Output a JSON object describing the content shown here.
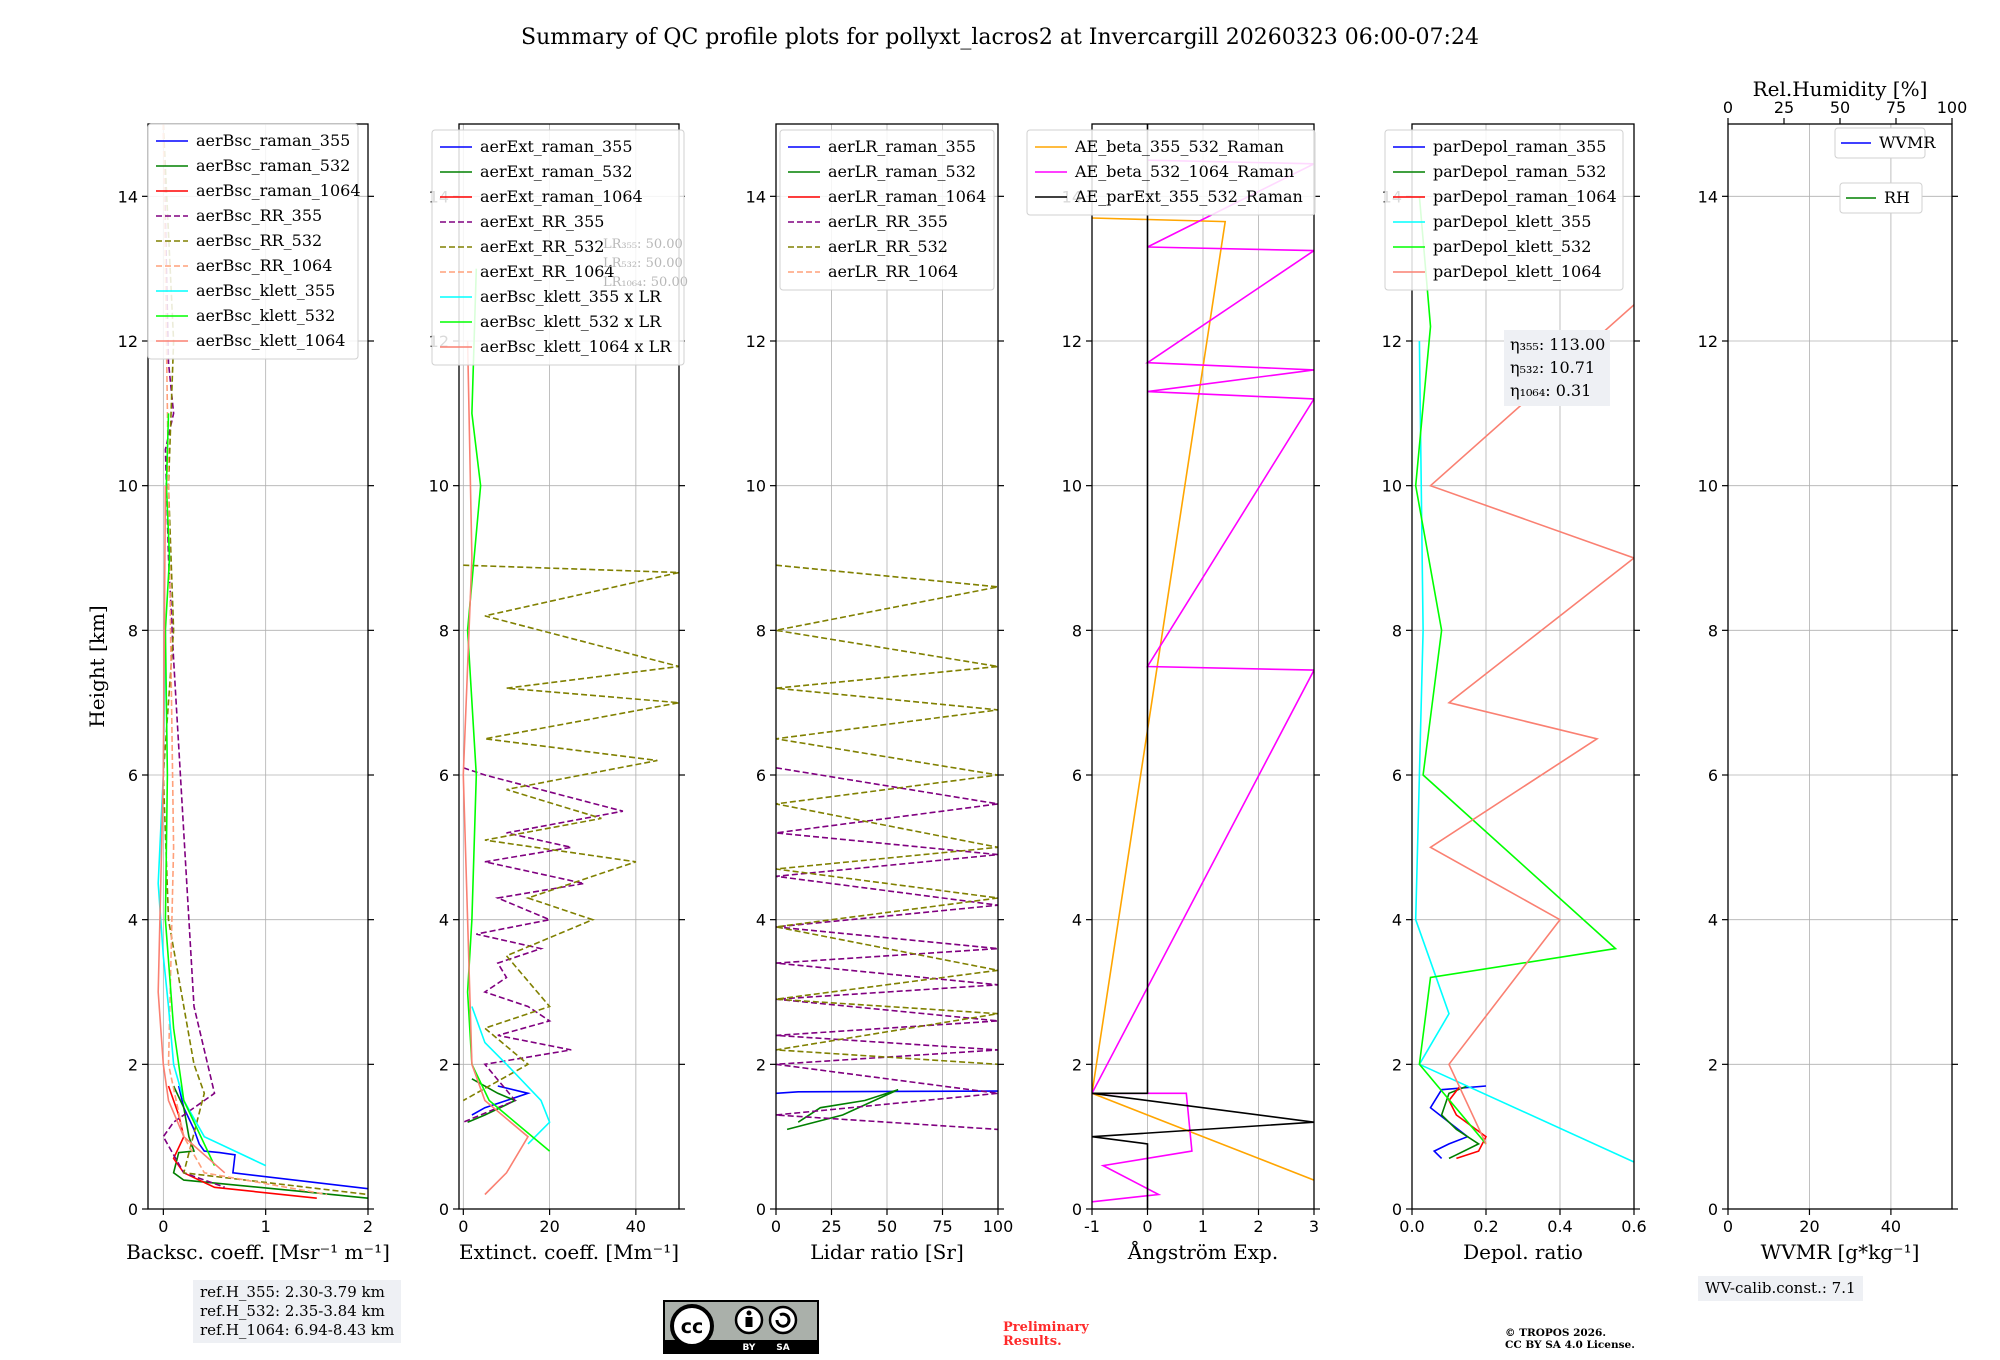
{
  "title": "Summary of QC profile plots for pollyxt_lacros2 at Invercargill 20260323 06:00-07:24",
  "colors": {
    "raman_355": "#0000ff",
    "raman_532": "#008000",
    "raman_1064": "#ff0000",
    "rr_355": "#800080",
    "rr_532": "#808000",
    "rr_1064": "#ffa07a",
    "klett_355": "#00ffff",
    "klett_532": "#00ff00",
    "klett_1064": "#fa8072",
    "ae_beta_355_532": "#ffa500",
    "ae_beta_532_1064": "#ff00ff",
    "ae_parext": "#000000",
    "wvmr": "#0000ff",
    "rh": "#008000"
  },
  "chart_data": [
    {
      "type": "line",
      "panel": "backscatter",
      "xlabel": "Backsc. coeff. [Msr⁻¹ m⁻¹]",
      "ylabel": "Height [km]",
      "xlim": [
        -0.15,
        2
      ],
      "ylim": [
        0,
        15
      ],
      "xticks": [
        0,
        1,
        2
      ],
      "yticks": [
        0,
        2,
        4,
        6,
        8,
        10,
        12,
        14
      ],
      "legend": [
        "aerBsc_raman_355",
        "aerBsc_raman_532",
        "aerBsc_raman_1064",
        "aerBsc_RR_355",
        "aerBsc_RR_532",
        "aerBsc_RR_1064",
        "aerBsc_klett_355",
        "aerBsc_klett_532",
        "aerBsc_klett_1064"
      ],
      "series": [
        {
          "name": "aerBsc_raman_355",
          "x": [
            0.15,
            0.2,
            0.3,
            0.35,
            0.4,
            0.55,
            0.7,
            0.68,
            2.0
          ],
          "y": [
            1.7,
            1.4,
            1.1,
            0.9,
            0.8,
            0.78,
            0.75,
            0.5,
            0.28
          ]
        },
        {
          "name": "aerBsc_raman_532",
          "x": [
            0.1,
            0.2,
            0.25,
            0.3,
            0.15,
            0.1,
            0.2,
            1.3,
            2.0
          ],
          "y": [
            1.7,
            1.4,
            1.0,
            0.8,
            0.78,
            0.5,
            0.4,
            0.25,
            0.15
          ]
        },
        {
          "name": "aerBsc_raman_1064",
          "x": [
            0.05,
            0.15,
            0.2,
            0.1,
            0.2,
            0.5,
            1.5
          ],
          "y": [
            1.7,
            1.3,
            1.0,
            0.7,
            0.5,
            0.3,
            0.15
          ]
        },
        {
          "name": "aerBsc_RR_355",
          "x": [
            0.0,
            0.05,
            0.1,
            0.02,
            0.05,
            0.1,
            0.3,
            0.5,
            0.1,
            0.0,
            0.2,
            0.6
          ],
          "y": [
            15,
            11.7,
            11.0,
            10.5,
            9.0,
            7.6,
            2.8,
            1.6,
            1.2,
            1.0,
            0.5,
            0.3
          ]
        },
        {
          "name": "aerBsc_RR_532",
          "x": [
            0.0,
            0.1,
            0.05,
            0.1,
            0.0,
            0.05,
            0.3,
            0.4,
            0.2,
            2.0
          ],
          "y": [
            15,
            12.0,
            10.0,
            8.0,
            6.0,
            4.0,
            2.0,
            1.6,
            0.5,
            0.2
          ]
        },
        {
          "name": "aerBsc_RR_1064",
          "x": [
            0.0,
            0.05,
            0.1,
            0.05,
            0.2,
            0.4,
            1.6
          ],
          "y": [
            15,
            10.0,
            5.0,
            2.0,
            1.0,
            0.5,
            0.2
          ]
        },
        {
          "name": "aerBsc_klett_355",
          "x": [
            0.02,
            0.0,
            -0.05,
            0.0,
            0.05,
            0.1,
            0.2,
            0.4,
            1.0
          ],
          "y": [
            8.0,
            6.0,
            4.5,
            3.5,
            2.8,
            2.0,
            1.5,
            1.0,
            0.6
          ]
        },
        {
          "name": "aerBsc_klett_532",
          "x": [
            0.05,
            0.03,
            0.06,
            0.02,
            0.04,
            0.02,
            0.1,
            0.2,
            0.5
          ],
          "y": [
            11.0,
            10.0,
            9.0,
            8.0,
            6.0,
            4.0,
            2.5,
            1.5,
            0.6
          ]
        },
        {
          "name": "aerBsc_klett_1064",
          "x": [
            0.02,
            0.0,
            -0.05,
            0.0,
            0.05,
            0.2,
            0.6
          ],
          "y": [
            10.0,
            6.0,
            3.0,
            2.0,
            1.5,
            1.0,
            0.5
          ]
        }
      ]
    },
    {
      "type": "line",
      "panel": "extinction",
      "xlabel": "Extinct. coeff. [Mm⁻¹]",
      "xlim": [
        -1,
        50
      ],
      "ylim": [
        0,
        15
      ],
      "xticks": [
        0,
        20,
        40
      ],
      "yticks": [
        0,
        2,
        4,
        6,
        8,
        10,
        12,
        14
      ],
      "legend": [
        "aerExt_raman_355",
        "aerExt_raman_532",
        "aerExt_raman_1064",
        "aerExt_RR_355",
        "aerExt_RR_532",
        "aerExt_RR_1064",
        "aerBsc_klett_355 x LR",
        "aerBsc_klett_532 x LR",
        "aerBsc_klett_1064 x LR"
      ],
      "lidar_ratio_labels": [
        "LR₃₅₅: 50.00",
        "LR₅₃₂: 50.00",
        "LR₁₀₆₄: 50.00"
      ],
      "series": [
        {
          "name": "aerExt_raman_355",
          "x": [
            8,
            15,
            10,
            5,
            2
          ],
          "y": [
            1.7,
            1.6,
            1.5,
            1.4,
            1.3
          ]
        },
        {
          "name": "aerExt_raman_532",
          "x": [
            2,
            8,
            12,
            5,
            1
          ],
          "y": [
            1.8,
            1.6,
            1.5,
            1.3,
            1.2
          ]
        },
        {
          "name": "aerExt_RR_355",
          "x": [
            0,
            5,
            37,
            10,
            25,
            5,
            28,
            8,
            20,
            3,
            18,
            8,
            10,
            5,
            15,
            20,
            8,
            25,
            5,
            12,
            0
          ],
          "y": [
            6.1,
            6.0,
            5.5,
            5.2,
            5.0,
            4.8,
            4.5,
            4.3,
            4.0,
            3.8,
            3.6,
            3.4,
            3.2,
            3.0,
            2.8,
            2.6,
            2.4,
            2.2,
            2.0,
            1.5,
            1.2
          ]
        },
        {
          "name": "aerExt_RR_532",
          "x": [
            0,
            50,
            5,
            50,
            10,
            50,
            5,
            45,
            10,
            32,
            5,
            40,
            15,
            30,
            10,
            20,
            5,
            15,
            0
          ],
          "y": [
            8.9,
            8.8,
            8.2,
            7.5,
            7.2,
            7.0,
            6.5,
            6.2,
            5.8,
            5.4,
            5.1,
            4.8,
            4.3,
            4.0,
            3.5,
            2.8,
            2.5,
            2.0,
            1.5
          ]
        },
        {
          "name": "aerBsc_klett_355 x LR",
          "x": [
            2,
            5,
            10,
            18,
            20,
            15
          ],
          "y": [
            2.8,
            2.3,
            2.0,
            1.5,
            1.2,
            0.9
          ]
        },
        {
          "name": "aerBsc_klett_532 x LR",
          "x": [
            3,
            2,
            4,
            1,
            3,
            2,
            1,
            2,
            6,
            12,
            20
          ],
          "y": [
            13.0,
            11.0,
            10.0,
            8.0,
            6.0,
            4.0,
            3.0,
            2.0,
            1.5,
            1.2,
            0.8
          ]
        },
        {
          "name": "aerBsc_klett_1064 x LR",
          "x": [
            1,
            2,
            0,
            1,
            2,
            5,
            15,
            10,
            5
          ],
          "y": [
            12.0,
            9.0,
            6.0,
            4.0,
            2.0,
            1.5,
            1.0,
            0.5,
            0.2
          ]
        }
      ]
    },
    {
      "type": "line",
      "panel": "lidar_ratio",
      "xlabel": "Lidar ratio [Sr]",
      "xlim": [
        0,
        100
      ],
      "ylim": [
        0,
        15
      ],
      "xticks": [
        0,
        25,
        50,
        75,
        100
      ],
      "yticks": [
        0,
        2,
        4,
        6,
        8,
        10,
        12,
        14
      ],
      "legend": [
        "aerLR_raman_355",
        "aerLR_raman_532",
        "aerLR_raman_1064",
        "aerLR_RR_355",
        "aerLR_RR_532",
        "aerLR_RR_1064"
      ],
      "series": [
        {
          "name": "aerLR_raman_355",
          "x": [
            0,
            10,
            100
          ],
          "y": [
            1.6,
            1.62,
            1.63
          ]
        },
        {
          "name": "aerLR_raman_532",
          "x": [
            5,
            30,
            55,
            40,
            20,
            10
          ],
          "y": [
            1.1,
            1.3,
            1.65,
            1.5,
            1.4,
            1.2
          ]
        },
        {
          "name": "aerLR_RR_355",
          "x": [
            0,
            100,
            0,
            100,
            0,
            100,
            0,
            100,
            0,
            100,
            0,
            100,
            0,
            100,
            0,
            100,
            0,
            100
          ],
          "y": [
            6.1,
            5.6,
            5.2,
            4.9,
            4.6,
            4.2,
            3.9,
            3.6,
            3.4,
            3.1,
            2.9,
            2.6,
            2.4,
            2.2,
            2.0,
            1.6,
            1.3,
            1.1
          ]
        },
        {
          "name": "aerLR_RR_532",
          "x": [
            0,
            100,
            0,
            100,
            0,
            100,
            0,
            100,
            0,
            100,
            0,
            100,
            0,
            100,
            0,
            100,
            0,
            100
          ],
          "y": [
            8.9,
            8.6,
            8.0,
            7.5,
            7.2,
            6.9,
            6.5,
            6.0,
            5.6,
            5.0,
            4.7,
            4.3,
            3.9,
            3.3,
            2.9,
            2.7,
            2.2,
            2.0
          ]
        }
      ]
    },
    {
      "type": "line",
      "panel": "angstrom",
      "xlabel": "Ångström Exp.",
      "xlim": [
        -1,
        3
      ],
      "ylim": [
        0,
        15
      ],
      "xticks": [
        -1,
        0,
        1,
        2,
        3
      ],
      "yticks": [
        0,
        2,
        4,
        6,
        8,
        10,
        12,
        14
      ],
      "legend": [
        "AE_beta_355_532_Raman",
        "AE_beta_532_1064_Raman",
        "AE_parExt_355_532_Raman"
      ],
      "series": [
        {
          "name": "AE_beta_355_532_Raman",
          "x": [
            -1,
            1.4,
            -1,
            3
          ],
          "y": [
            13.7,
            13.65,
            1.6,
            0.4
          ]
        },
        {
          "name": "AE_beta_532_1064_Raman",
          "x": [
            0,
            3,
            0,
            3,
            0,
            3,
            0,
            3,
            0,
            3,
            -1,
            0.7,
            0.8,
            -0.8,
            0.2,
            -1
          ],
          "y": [
            14.5,
            14.45,
            13.3,
            13.25,
            11.7,
            11.6,
            11.3,
            11.2,
            7.5,
            7.45,
            1.6,
            1.6,
            0.8,
            0.6,
            0.2,
            0.1
          ]
        },
        {
          "name": "AE_parExt_355_532_Raman",
          "x": [
            0,
            0,
            -1,
            3,
            -1,
            0,
            0
          ],
          "y": [
            15,
            1.6,
            1.6,
            1.2,
            1.0,
            0.9,
            0
          ]
        }
      ]
    },
    {
      "type": "line",
      "panel": "depolarization",
      "xlabel": "Depol. ratio",
      "xlim": [
        0,
        0.6
      ],
      "ylim": [
        0,
        15
      ],
      "xticks": [
        0.0,
        0.2,
        0.4,
        0.6
      ],
      "yticks": [
        0,
        2,
        4,
        6,
        8,
        10,
        12,
        14
      ],
      "legend": [
        "parDepol_raman_355",
        "parDepol_raman_532",
        "parDepol_raman_1064",
        "parDepol_klett_355",
        "parDepol_klett_532",
        "parDepol_klett_1064"
      ],
      "eta_labels": [
        "η₃₅₅: 113.00",
        "η₅₃₂: 10.71",
        "η₁₀₆₄: 0.31"
      ],
      "series": [
        {
          "name": "parDepol_raman_355",
          "x": [
            0.2,
            0.08,
            0.05,
            0.1,
            0.15,
            0.1,
            0.06,
            0.08
          ],
          "y": [
            1.7,
            1.65,
            1.4,
            1.2,
            1.0,
            0.9,
            0.8,
            0.7
          ]
        },
        {
          "name": "parDepol_raman_532",
          "x": [
            0.15,
            0.1,
            0.08,
            0.12,
            0.18,
            0.12,
            0.1
          ],
          "y": [
            1.7,
            1.6,
            1.3,
            1.1,
            0.9,
            0.75,
            0.7
          ]
        },
        {
          "name": "parDepol_raman_1064",
          "x": [
            0.13,
            0.1,
            0.12,
            0.2,
            0.18,
            0.12
          ],
          "y": [
            1.7,
            1.5,
            1.3,
            1.0,
            0.8,
            0.7
          ]
        },
        {
          "name": "parDepol_klett_355",
          "x": [
            0.02,
            0.03,
            0.01,
            0.1,
            0.02,
            0.6
          ],
          "y": [
            12.0,
            8.0,
            4.0,
            2.7,
            2.0,
            0.65
          ]
        },
        {
          "name": "parDepol_klett_532",
          "x": [
            0.02,
            0.05,
            0.01,
            0.08,
            0.03,
            0.55,
            0.05,
            0.02,
            0.2
          ],
          "y": [
            14.0,
            12.2,
            10.0,
            8.0,
            6.0,
            3.6,
            3.2,
            2.0,
            0.9
          ]
        },
        {
          "name": "parDepol_klett_1064",
          "x": [
            0.6,
            0.05,
            0.6,
            0.1,
            0.5,
            0.05,
            0.4,
            0.1,
            0.2
          ],
          "y": [
            12.5,
            10.0,
            9.0,
            7.0,
            6.5,
            5.0,
            4.0,
            2.0,
            0.9
          ]
        }
      ]
    },
    {
      "type": "line",
      "panel": "water_vapor",
      "xlabel": "WVMR [g*kg⁻¹]",
      "x2label": "Rel.Humidity [%]",
      "xlim": [
        0,
        55
      ],
      "ylim": [
        0,
        15
      ],
      "xticks": [
        0,
        20,
        40
      ],
      "x2ticks": [
        0,
        25,
        50,
        75,
        100
      ],
      "yticks": [
        0,
        2,
        4,
        6,
        8,
        10,
        12,
        14
      ],
      "legend": [
        "WVMR",
        "RH"
      ],
      "series": []
    }
  ],
  "notes": {
    "ref_heights": [
      "ref.H_355: 2.30-3.79 km",
      "ref.H_532: 2.35-3.84 km",
      "ref.H_1064: 6.94-8.43 km"
    ],
    "wv_calib": "WV-calib.const.: 7.1",
    "preliminary": [
      "Preliminary",
      "Results."
    ],
    "copyright": [
      "© TROPOS 2026.",
      "CC BY SA 4.0 License."
    ],
    "license_badge": [
      "BY",
      "SA"
    ]
  }
}
